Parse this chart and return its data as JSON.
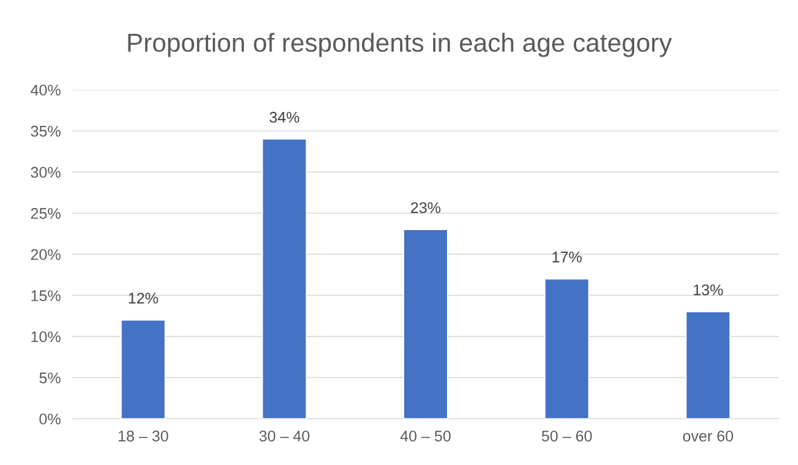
{
  "chart_data": {
    "type": "bar",
    "title": "Proportion of respondents in each age category",
    "categories": [
      "18 – 30",
      "30 – 40",
      "40 – 50",
      "50 – 60",
      "over 60"
    ],
    "values": [
      12,
      34,
      23,
      17,
      13
    ],
    "value_labels": [
      "12%",
      "34%",
      "23%",
      "17%",
      "13%"
    ],
    "color": "#4472c4",
    "ylim": [
      0,
      40
    ],
    "yticks": [
      {
        "value": 0,
        "label": "0%"
      },
      {
        "value": 5,
        "label": "5%"
      },
      {
        "value": 10,
        "label": "10%"
      },
      {
        "value": 15,
        "label": "15%"
      },
      {
        "value": 20,
        "label": "20%"
      },
      {
        "value": 25,
        "label": "25%"
      },
      {
        "value": 30,
        "label": "30%"
      },
      {
        "value": 35,
        "label": "35%"
      },
      {
        "value": 40,
        "label": "40%"
      }
    ],
    "grid": "y",
    "legend": false
  }
}
